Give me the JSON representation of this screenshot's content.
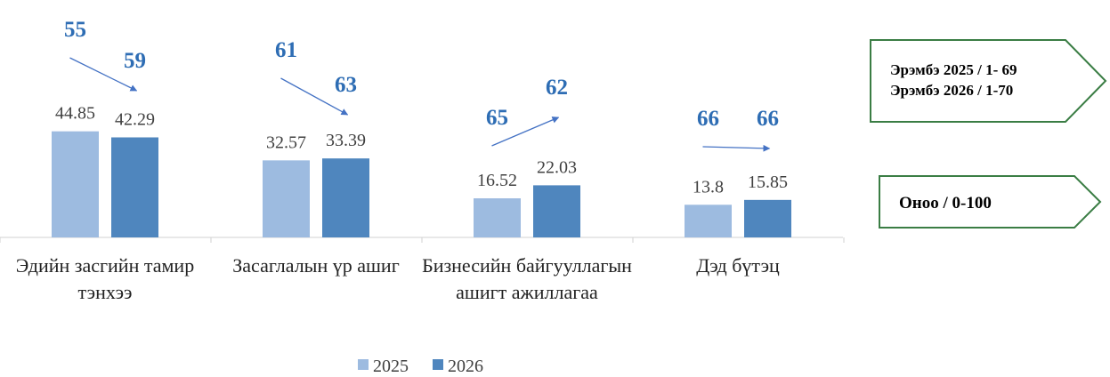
{
  "chart_data": {
    "type": "bar",
    "categories": [
      "Эдийн засгийн тамир тэнхээ",
      "Засаглалын үр ашиг",
      "Бизнесийн байгууллагын ашигт ажиллагаа",
      "Дэд бүтэц"
    ],
    "series": [
      {
        "name": "2025",
        "color": "#9dbbe0",
        "values": [
          44.85,
          32.57,
          16.52,
          13.8
        ]
      },
      {
        "name": "2026",
        "color": "#4f86be",
        "values": [
          42.29,
          33.39,
          22.03,
          15.85
        ]
      }
    ],
    "ranks": {
      "color": "#2e6db4",
      "2025": [
        55,
        61,
        65,
        66
      ],
      "2026": [
        59,
        63,
        62,
        66
      ]
    },
    "ylim": [
      0,
      50
    ],
    "annotations": [
      "Эрэмбэ 2025 / 1- 69",
      "Эрэмбэ 2026 / 1-70",
      "Оноо / 0-100"
    ],
    "callout_color": "#3a7d44"
  }
}
